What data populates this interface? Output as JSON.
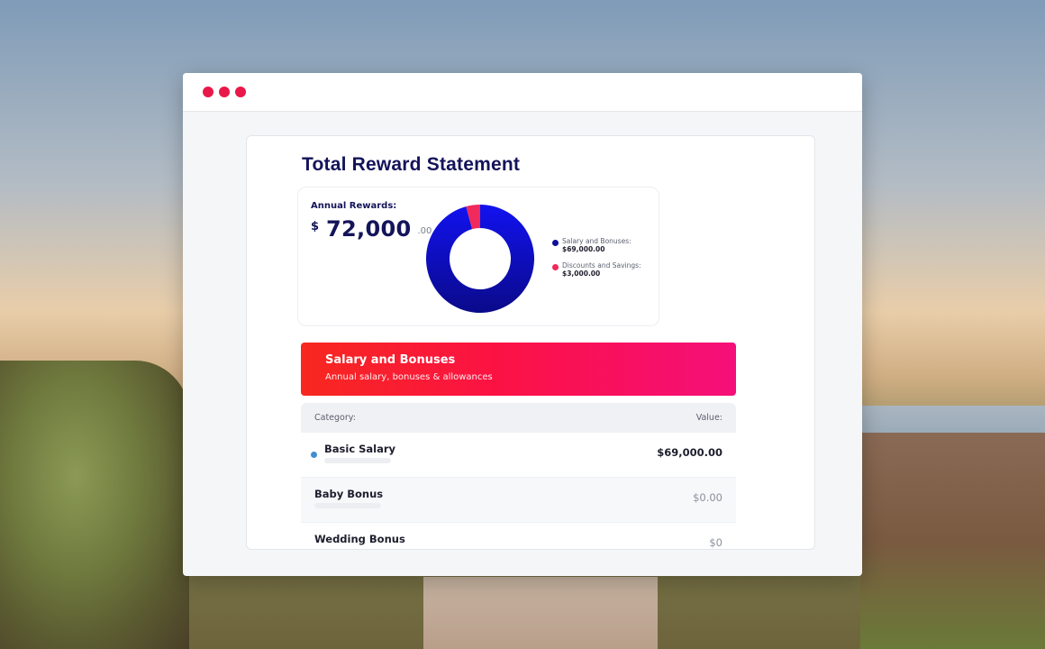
{
  "app": {
    "title": "Total Reward Statement",
    "window_dot_color": "#e9184a"
  },
  "summary": {
    "label": "Annual Rewards:",
    "currency": "$",
    "amount": "72,000",
    "cents": ".00",
    "legend": [
      {
        "name": "Salary and Bonuses:",
        "value": "$69,000.00",
        "color": "#10109a"
      },
      {
        "name": "Discounts and Savings:",
        "value": "$3,000.00",
        "color": "#f02a5a"
      }
    ],
    "donut_fractions": {
      "salary": 0.958,
      "discounts": 0.042
    }
  },
  "section": {
    "title": "Salary and Bonuses",
    "subtitle": "Annual salary, bonuses & allowances"
  },
  "table": {
    "header": {
      "category": "Category:",
      "value": "Value:"
    },
    "rows": [
      {
        "label": "Basic Salary",
        "value": "$69,000.00"
      },
      {
        "label": "Baby Bonus",
        "value": "$0.00"
      },
      {
        "label": "Wedding Bonus",
        "value": "$0"
      }
    ]
  }
}
